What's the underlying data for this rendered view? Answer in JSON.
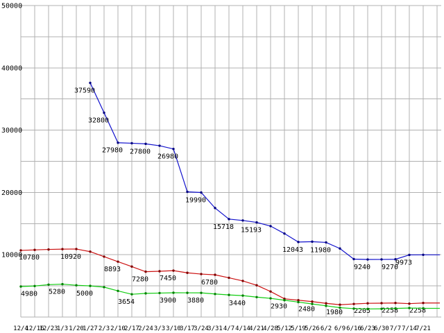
{
  "chart_data": {
    "type": "line",
    "title": "",
    "xlabel": "",
    "ylabel": "",
    "ylim": [
      0,
      50000
    ],
    "y_grid_step": 5000,
    "y_tick_labels": [
      "10000",
      "20000",
      "30000",
      "40000",
      "50000"
    ],
    "grid": true,
    "legend": "none",
    "colors": {
      "background": "#ffffff",
      "grid": "#b0b0b0",
      "text": "#000000"
    },
    "categories": [
      "12/4",
      "12/16",
      "12/23",
      "1/3",
      "1/20",
      "1/27",
      "2/3",
      "2/10",
      "2/17",
      "2/24",
      "3/3",
      "3/10",
      "3/17",
      "3/24",
      "3/31",
      "4/7",
      "4/14",
      "4/21",
      "4/28",
      "5/12",
      "5/19",
      "5/26",
      "6/2",
      "6/9",
      "6/16",
      "6/23",
      "6/30",
      "7/7",
      "7/14",
      "7/21"
    ],
    "series": [
      {
        "name": "series-blue",
        "color": "#1111cc",
        "dot_color": "#000080",
        "values": [
          null,
          null,
          null,
          null,
          null,
          37590,
          32800,
          27980,
          27900,
          27800,
          27500,
          26980,
          20100,
          19990,
          17500,
          15718,
          15500,
          15193,
          14600,
          13400,
          12043,
          12100,
          11980,
          11000,
          9300,
          9240,
          9250,
          9270,
          9973,
          9990
        ],
        "point_labels": [
          {
            "index": 5,
            "text": "37590"
          },
          {
            "index": 6,
            "text": "32800"
          },
          {
            "index": 7,
            "text": "27980"
          },
          {
            "index": 9,
            "text": "27800"
          },
          {
            "index": 11,
            "text": "26980"
          },
          {
            "index": 13,
            "text": "19990"
          },
          {
            "index": 15,
            "text": "15718"
          },
          {
            "index": 17,
            "text": "15193"
          },
          {
            "index": 20,
            "text": "12043"
          },
          {
            "index": 22,
            "text": "11980"
          },
          {
            "index": 25,
            "text": "9240"
          },
          {
            "index": 27,
            "text": "9270"
          },
          {
            "index": 28,
            "text": "9973"
          }
        ]
      },
      {
        "name": "series-red",
        "color": "#cc1111",
        "dot_color": "#800000",
        "values": [
          10700,
          10780,
          10850,
          10900,
          10920,
          10500,
          9700,
          8893,
          8100,
          7280,
          7350,
          7450,
          7100,
          6900,
          6780,
          6300,
          5800,
          5100,
          4100,
          2930,
          2700,
          2480,
          2200,
          1980,
          2100,
          2205,
          2230,
          2258,
          2150,
          2258
        ],
        "point_labels": [
          {
            "index": 1,
            "text": "10780"
          },
          {
            "index": 4,
            "text": "10920"
          },
          {
            "index": 7,
            "text": "8893"
          },
          {
            "index": 9,
            "text": "7280"
          },
          {
            "index": 11,
            "text": "7450"
          },
          {
            "index": 14,
            "text": "6780"
          },
          {
            "index": 19,
            "text": "2930"
          },
          {
            "index": 21,
            "text": "2480"
          },
          {
            "index": 23,
            "text": "1980"
          },
          {
            "index": 25,
            "text": "2205"
          },
          {
            "index": 27,
            "text": "2258"
          },
          {
            "index": 29,
            "text": "2258"
          }
        ]
      },
      {
        "name": "series-green",
        "color": "#11cc11",
        "dot_color": "#008000",
        "values": [
          4900,
          4980,
          5200,
          5280,
          5100,
          5000,
          4800,
          4200,
          3654,
          3800,
          3850,
          3900,
          3890,
          3880,
          3700,
          3550,
          3440,
          3200,
          3000,
          2700,
          2400,
          2100,
          1800,
          1500,
          1350,
          1300,
          1320,
          1380,
          1450,
          1400
        ],
        "point_labels": [
          {
            "index": 1,
            "text": "4980"
          },
          {
            "index": 3,
            "text": "5280"
          },
          {
            "index": 5,
            "text": "5000"
          },
          {
            "index": 8,
            "text": "3654"
          },
          {
            "index": 11,
            "text": "3900"
          },
          {
            "index": 13,
            "text": "3880"
          },
          {
            "index": 16,
            "text": "3440"
          }
        ]
      }
    ]
  }
}
